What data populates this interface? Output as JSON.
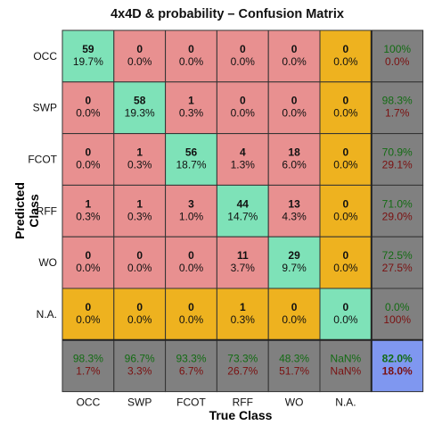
{
  "title": "4x4D & probability –  Confusion Matrix",
  "xlabel": "True Class",
  "ylabel": "Predicted Class",
  "colors": {
    "diag": "#7ee2b8",
    "offdiag": "#e89090",
    "na_col": "#eeb21f",
    "summary": "#808080",
    "overall": "#7f97f0",
    "good_text": "#136b13",
    "bad_text": "#7a1010"
  },
  "chart_data": {
    "type": "heatmap",
    "title": "4x4D & probability –  Confusion Matrix",
    "xlabel": "True Class",
    "ylabel": "Predicted Class",
    "x_labels": [
      "OCC",
      "SWP",
      "FCOT",
      "RFF",
      "WO",
      "N.A."
    ],
    "y_labels": [
      "OCC",
      "SWP",
      "FCOT",
      "RFF",
      "WO",
      "N.A."
    ],
    "counts": [
      [
        59,
        0,
        0,
        0,
        0,
        0
      ],
      [
        0,
        58,
        1,
        0,
        0,
        0
      ],
      [
        0,
        1,
        56,
        4,
        18,
        0
      ],
      [
        1,
        1,
        3,
        44,
        13,
        0
      ],
      [
        0,
        0,
        0,
        11,
        29,
        0
      ],
      [
        0,
        0,
        0,
        1,
        0,
        0
      ]
    ],
    "percents": [
      [
        "19.7%",
        "0.0%",
        "0.0%",
        "0.0%",
        "0.0%",
        "0.0%"
      ],
      [
        "0.0%",
        "19.3%",
        "0.3%",
        "0.0%",
        "0.0%",
        "0.0%"
      ],
      [
        "0.0%",
        "0.3%",
        "18.7%",
        "1.3%",
        "6.0%",
        "0.0%"
      ],
      [
        "0.3%",
        "0.3%",
        "1.0%",
        "14.7%",
        "4.3%",
        "0.0%"
      ],
      [
        "0.0%",
        "0.0%",
        "0.0%",
        "3.7%",
        "9.7%",
        "0.0%"
      ],
      [
        "0.0%",
        "0.0%",
        "0.0%",
        "0.3%",
        "0.0%",
        "0.0%"
      ]
    ],
    "row_summary": [
      [
        "100%",
        "0.0%"
      ],
      [
        "98.3%",
        "1.7%"
      ],
      [
        "70.9%",
        "29.1%"
      ],
      [
        "71.0%",
        "29.0%"
      ],
      [
        "72.5%",
        "27.5%"
      ],
      [
        "0.0%",
        "100%"
      ]
    ],
    "col_summary": [
      [
        "98.3%",
        "1.7%"
      ],
      [
        "96.7%",
        "3.3%"
      ],
      [
        "93.3%",
        "6.7%"
      ],
      [
        "73.3%",
        "26.7%"
      ],
      [
        "48.3%",
        "51.7%"
      ],
      [
        "NaN%",
        "NaN%"
      ]
    ],
    "overall": [
      "82.0%",
      "18.0%"
    ]
  }
}
